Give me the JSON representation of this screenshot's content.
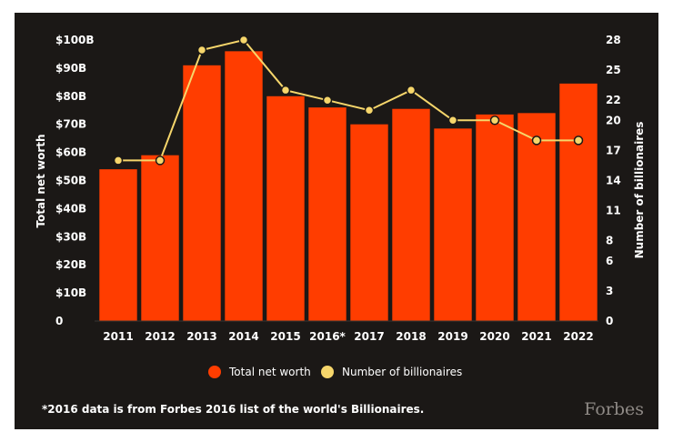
{
  "chart_data": {
    "type": "bar",
    "categories": [
      "2011",
      "2012",
      "2013",
      "2014",
      "2015",
      "2016*",
      "2017",
      "2018",
      "2019",
      "2020",
      "2021",
      "2022"
    ],
    "series": [
      {
        "name": "Total net worth",
        "type": "bar",
        "axis": "left",
        "color": "#ff3d00",
        "values": [
          54,
          59,
          91,
          96,
          80,
          76,
          70,
          75.5,
          68.5,
          73.5,
          74,
          84.5
        ]
      },
      {
        "name": "Number of billionaires",
        "type": "line",
        "axis": "right",
        "color": "#f6d66b",
        "values": [
          16,
          16,
          27,
          28,
          23,
          22,
          21,
          23,
          20,
          20,
          18,
          18
        ]
      }
    ],
    "left_axis": {
      "title": "Total net worth",
      "min": 0,
      "max": 100,
      "tick_labels": [
        "0",
        "$10B",
        "$20B",
        "$30B",
        "$40B",
        "$50B",
        "$60B",
        "$70B",
        "$80B",
        "$90B",
        "$100B"
      ]
    },
    "right_axis": {
      "title": "Number of billionaires",
      "min": 0,
      "max": 28,
      "tick_values": [
        0,
        3,
        6,
        8,
        11,
        14,
        17,
        20,
        22,
        25,
        28
      ],
      "tick_labels": [
        "0",
        "3",
        "6",
        "8",
        "11",
        "14",
        "17",
        "20",
        "22",
        "25",
        "28"
      ]
    },
    "legend": {
      "position": "bottom",
      "items": [
        {
          "label": "Total net worth",
          "color": "#ff3d00"
        },
        {
          "label": "Number of billionaires",
          "color": "#f6d66b"
        }
      ]
    },
    "footnote": "*2016 data is from Forbes 2016 list of the world's Billionaires.",
    "logo": "Forbes"
  }
}
